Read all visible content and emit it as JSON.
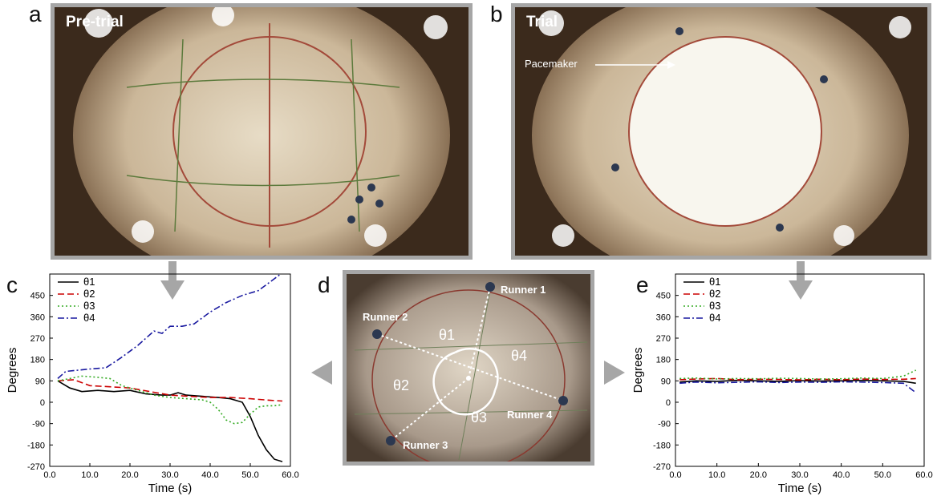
{
  "panels": {
    "a": {
      "letter": "a",
      "label": "Pre-trial"
    },
    "b": {
      "letter": "b",
      "label": "Trial",
      "annotation": "Pacemaker"
    },
    "c": {
      "letter": "c"
    },
    "d": {
      "letter": "d",
      "runners": [
        "Runner 1",
        "Runner 2",
        "Runner 3",
        "Runner 4"
      ],
      "angles": [
        "θ1",
        "θ2",
        "θ3",
        "θ4"
      ]
    },
    "e": {
      "letter": "e"
    }
  },
  "colors": {
    "theta1": "#000000",
    "theta2": "#cc0000",
    "theta3": "#33aa22",
    "theta4": "#1a1aa0",
    "frame": "#a6a6a6",
    "floor": "#c9b79a"
  },
  "chart_data": [
    {
      "type": "line",
      "panel": "c",
      "xlabel": "Time (s)",
      "ylabel": "Degrees",
      "xlim": [
        0,
        60
      ],
      "ylim": [
        -270,
        540
      ],
      "xticks": [
        "0.0",
        "10.0",
        "20.0",
        "30.0",
        "40.0",
        "50.0",
        "60.0"
      ],
      "yticks": [
        "-270",
        "-180",
        "-90",
        "0",
        "90",
        "180",
        "270",
        "360",
        "450"
      ],
      "legend": [
        "θ1",
        "θ2",
        "θ3",
        "θ4"
      ],
      "legend_position": "top-left",
      "series": [
        {
          "name": "θ1",
          "style": "solid",
          "x": [
            2,
            5,
            8,
            12,
            16,
            20,
            24,
            28,
            30,
            32,
            34,
            38,
            42,
            45,
            48,
            50,
            52,
            54,
            56,
            58
          ],
          "y": [
            90,
            60,
            45,
            50,
            45,
            50,
            35,
            30,
            30,
            40,
            30,
            25,
            20,
            15,
            0,
            -60,
            -140,
            -200,
            -240,
            -250
          ]
        },
        {
          "name": "θ2",
          "style": "dashed",
          "x": [
            2,
            6,
            10,
            15,
            20,
            25,
            30,
            35,
            40,
            45,
            50,
            55,
            58
          ],
          "y": [
            90,
            95,
            70,
            65,
            60,
            45,
            30,
            25,
            20,
            20,
            15,
            8,
            5
          ]
        },
        {
          "name": "θ3",
          "style": "dotted",
          "x": [
            2,
            5,
            8,
            12,
            15,
            18,
            22,
            26,
            30,
            34,
            38,
            40,
            42,
            44,
            46,
            48,
            50,
            52,
            54,
            56,
            58
          ],
          "y": [
            90,
            100,
            110,
            105,
            100,
            70,
            50,
            30,
            20,
            15,
            10,
            0,
            -30,
            -75,
            -90,
            -85,
            -50,
            -20,
            -15,
            -15,
            -10
          ]
        },
        {
          "name": "θ4",
          "style": "dashdot",
          "x": [
            2,
            4,
            7,
            10,
            14,
            18,
            22,
            26,
            28,
            30,
            33,
            36,
            40,
            44,
            48,
            52,
            56,
            58
          ],
          "y": [
            100,
            130,
            135,
            140,
            145,
            190,
            240,
            300,
            290,
            320,
            320,
            330,
            380,
            420,
            450,
            470,
            520,
            545
          ]
        }
      ]
    },
    {
      "type": "line",
      "panel": "e",
      "xlabel": "Time (s)",
      "ylabel": "Degrees",
      "xlim": [
        0,
        60
      ],
      "ylim": [
        -270,
        540
      ],
      "xticks": [
        "0.0",
        "10.0",
        "20.0",
        "30.0",
        "40.0",
        "50.0",
        "60.0"
      ],
      "yticks": [
        "-270",
        "-180",
        "-90",
        "0",
        "90",
        "180",
        "270",
        "360",
        "450"
      ],
      "legend": [
        "θ1",
        "θ2",
        "θ3",
        "θ4"
      ],
      "legend_position": "top-left",
      "series": [
        {
          "name": "θ1",
          "style": "solid",
          "x": [
            1,
            5,
            10,
            15,
            20,
            25,
            30,
            35,
            40,
            45,
            50,
            55,
            58
          ],
          "y": [
            85,
            90,
            88,
            92,
            90,
            88,
            91,
            89,
            90,
            92,
            90,
            88,
            80
          ]
        },
        {
          "name": "θ2",
          "style": "dashed",
          "x": [
            1,
            5,
            10,
            15,
            20,
            25,
            30,
            35,
            40,
            45,
            50,
            55,
            58
          ],
          "y": [
            95,
            98,
            100,
            95,
            97,
            96,
            94,
            97,
            95,
            98,
            96,
            97,
            100
          ]
        },
        {
          "name": "θ3",
          "style": "dotted",
          "x": [
            1,
            5,
            10,
            15,
            20,
            25,
            30,
            35,
            40,
            45,
            50,
            55,
            58
          ],
          "y": [
            100,
            102,
            98,
            100,
            99,
            101,
            100,
            98,
            99,
            102,
            100,
            110,
            135
          ]
        },
        {
          "name": "θ4",
          "style": "dashdot",
          "x": [
            1,
            5,
            10,
            15,
            20,
            25,
            30,
            35,
            40,
            45,
            50,
            55,
            58
          ],
          "y": [
            80,
            85,
            82,
            84,
            86,
            83,
            85,
            84,
            86,
            85,
            83,
            80,
            40
          ]
        }
      ]
    }
  ]
}
